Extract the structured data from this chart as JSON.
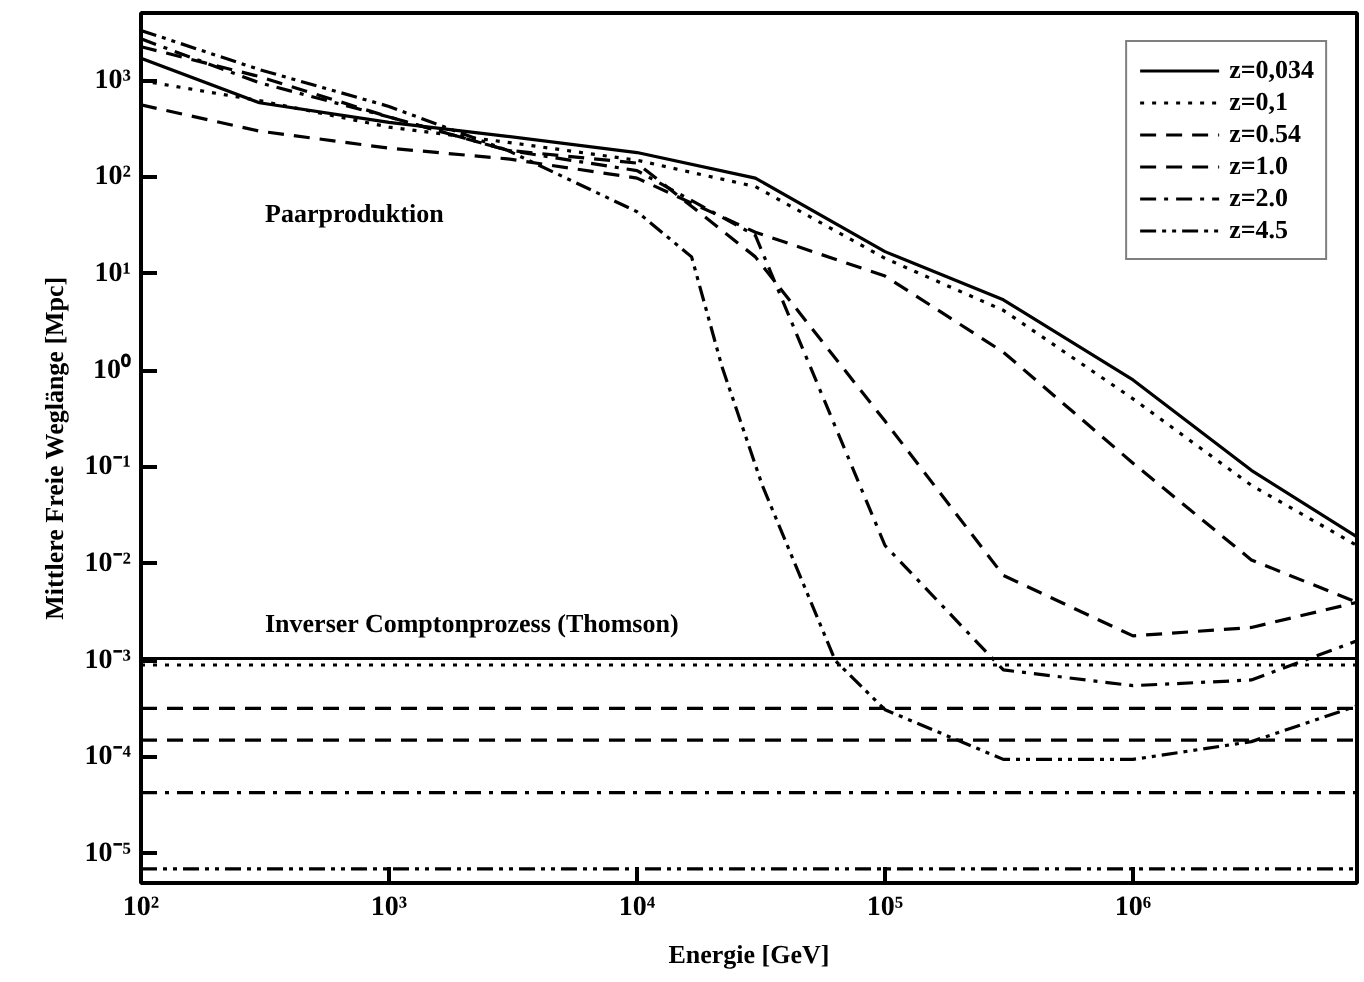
{
  "chart_data": {
    "type": "line",
    "xlabel": "Energie [GeV]",
    "ylabel": "Mittlere Freie Weglänge [Mpc]",
    "log": "xy",
    "grid": false,
    "legend": "top right",
    "marker": "none",
    "xlim": [
      100,
      8000000
    ],
    "ylim": [
      5e-06,
      5000
    ],
    "xticks": [
      {
        "value": 100,
        "label": "10²"
      },
      {
        "value": 1000,
        "label": "10³"
      },
      {
        "value": 10000,
        "label": "10⁴"
      },
      {
        "value": 100000,
        "label": "10⁵"
      },
      {
        "value": 1000000,
        "label": "10⁶"
      }
    ],
    "yticks": [
      {
        "value": 1e-05,
        "label": "10⁻⁵"
      },
      {
        "value": 0.0001,
        "label": "10⁻⁴"
      },
      {
        "value": 0.001,
        "label": "10⁻³"
      },
      {
        "value": 0.01,
        "label": "10⁻²"
      },
      {
        "value": 0.1,
        "label": "10⁻¹"
      },
      {
        "value": 1,
        "label": "10⁰"
      },
      {
        "value": 10,
        "label": "10¹"
      },
      {
        "value": 100,
        "label": "10²"
      },
      {
        "value": 1000,
        "label": "10³"
      }
    ],
    "x": [
      100,
      300,
      1000,
      3000,
      10000,
      30000,
      100000,
      300000,
      1000000,
      3000000,
      8000000
    ],
    "series": [
      {
        "name": "z=0,034",
        "color": "#000000",
        "line_style": "solid",
        "values": [
          1700,
          590,
          370,
          265,
          180,
          98,
          17,
          5.4,
          0.8,
          0.093,
          0.019
        ]
      },
      {
        "name": "z=0,1",
        "color": "#000000",
        "line_style": "dotted",
        "values": [
          1000,
          620,
          330,
          230,
          150,
          80,
          14.5,
          4.2,
          0.51,
          0.065,
          0.0155
        ]
      },
      {
        "name": "z=0.54",
        "color": "#000000",
        "line_style": "dashed",
        "values": [
          560,
          300,
          200,
          155,
          98,
          27,
          9.5,
          1.55,
          0.11,
          0.011,
          0.004
        ]
      },
      {
        "name": "z=1.0",
        "color": "#000000",
        "line_style": "dashed",
        "values": [
          2240,
          1100,
          420,
          190,
          140,
          15,
          0.3,
          0.0076,
          0.0018,
          0.0022,
          0.004
        ]
      },
      {
        "name": "z=2.0",
        "color": "#000000",
        "line_style": "dashdot",
        "values": [
          2700,
          950,
          420,
          190,
          117,
          25,
          0.0155,
          0.0008,
          0.00055,
          0.00063,
          0.0016
        ]
      },
      {
        "name": "z=4.5",
        "color": "#000000",
        "line_style": "dashdotdot",
        "x": [
          100,
          300,
          1000,
          3000,
          10000,
          16600,
          22000,
          32000,
          63000,
          100000,
          300000,
          1000000,
          3000000,
          8000000
        ],
        "values": [
          3300,
          1300,
          540,
          190,
          44,
          15,
          1.1,
          0.065,
          0.001,
          0.00031,
          9.5e-05,
          9.5e-05,
          0.000145,
          0.00034
        ]
      }
    ],
    "ref_lines": [
      {
        "axis": "y",
        "value": 0.00105,
        "color": "#000000",
        "line_style": "solid"
      },
      {
        "axis": "y",
        "value": 0.0009,
        "color": "#000000",
        "line_style": "dotted"
      },
      {
        "axis": "y",
        "value": 0.00032,
        "color": "#000000",
        "line_style": "dashed"
      },
      {
        "axis": "y",
        "value": 0.00015,
        "color": "#000000",
        "line_style": "dashed"
      },
      {
        "axis": "y",
        "value": 4.3e-05,
        "color": "#000000",
        "line_style": "dashdot"
      },
      {
        "axis": "y",
        "value": 7e-06,
        "color": "#000000",
        "line_style": "dashdotdot"
      }
    ],
    "annotations": [
      "Paarproduktion",
      "Inverser Comptonprozess (Thomson)"
    ]
  }
}
